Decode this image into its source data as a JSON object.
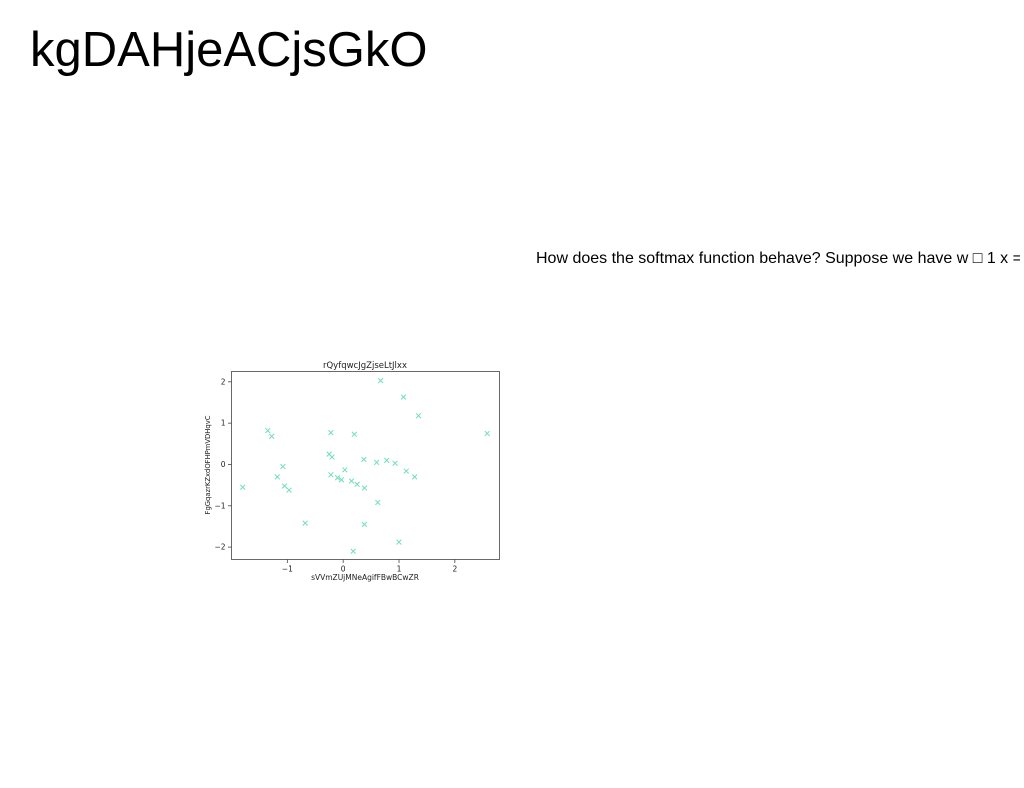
{
  "page": {
    "heading": "kgDAHjeACjsGkO",
    "question": "How does the softmax function behave? Suppose we have w □ 1 x ="
  },
  "chart_data": {
    "type": "scatter",
    "title": "rQyfqwcJgZjseLtJlxx",
    "xlabel": "sVVmZUjMNeAgifFBwBCwZR",
    "ylabel": "FgGqazrKZxdOFHPmVDHqvC",
    "marker": "x",
    "color": "#6fe0b5",
    "xlim": [
      -2.0,
      2.8
    ],
    "ylim": [
      -2.3,
      2.25
    ],
    "xticks": [
      -1,
      0,
      1,
      2
    ],
    "xtick_labels": [
      "−1",
      "0",
      "1",
      "2"
    ],
    "yticks": [
      2,
      1,
      0,
      -1,
      -2
    ],
    "ytick_labels": [
      "2",
      "1",
      "0",
      "−1",
      "−2"
    ],
    "grid": false,
    "points": [
      {
        "x": -1.8,
        "y": -0.55
      },
      {
        "x": -1.35,
        "y": 0.82
      },
      {
        "x": -1.28,
        "y": 0.68
      },
      {
        "x": -1.18,
        "y": -0.3
      },
      {
        "x": -1.08,
        "y": -0.05
      },
      {
        "x": -1.05,
        "y": -0.52
      },
      {
        "x": -0.97,
        "y": -0.62
      },
      {
        "x": -0.68,
        "y": -1.42
      },
      {
        "x": -0.25,
        "y": 0.25
      },
      {
        "x": -0.22,
        "y": 0.77
      },
      {
        "x": -0.22,
        "y": -0.25
      },
      {
        "x": -0.2,
        "y": 0.18
      },
      {
        "x": -0.1,
        "y": -0.32
      },
      {
        "x": -0.03,
        "y": -0.37
      },
      {
        "x": 0.03,
        "y": -0.13
      },
      {
        "x": 0.15,
        "y": -0.4
      },
      {
        "x": 0.18,
        "y": -2.1
      },
      {
        "x": 0.2,
        "y": 0.73
      },
      {
        "x": 0.25,
        "y": -0.48
      },
      {
        "x": 0.37,
        "y": 0.12
      },
      {
        "x": 0.38,
        "y": -0.57
      },
      {
        "x": 0.38,
        "y": -1.45
      },
      {
        "x": 0.6,
        "y": 0.05
      },
      {
        "x": 0.62,
        "y": -0.92
      },
      {
        "x": 0.67,
        "y": 2.03
      },
      {
        "x": 0.78,
        "y": 0.1
      },
      {
        "x": 0.93,
        "y": 0.03
      },
      {
        "x": 1.0,
        "y": -1.88
      },
      {
        "x": 1.08,
        "y": 1.63
      },
      {
        "x": 1.13,
        "y": -0.16
      },
      {
        "x": 1.28,
        "y": -0.3
      },
      {
        "x": 1.35,
        "y": 1.18
      },
      {
        "x": 2.58,
        "y": 0.75
      }
    ]
  }
}
